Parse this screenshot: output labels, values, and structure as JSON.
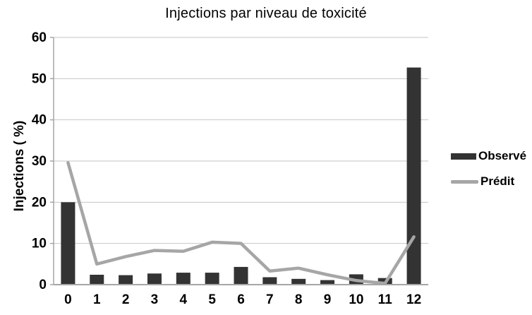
{
  "chart_data": {
    "type": "bar",
    "title": "Injections par niveau de toxicité",
    "xlabel": "",
    "ylabel": "Injections ( %)",
    "categories": [
      "0",
      "1",
      "2",
      "3",
      "4",
      "5",
      "6",
      "7",
      "8",
      "9",
      "10",
      "11",
      "12"
    ],
    "series": [
      {
        "name": "Observé",
        "type": "bar",
        "color": "#333333",
        "values": [
          20,
          2.4,
          2.3,
          2.7,
          2.9,
          2.9,
          4.3,
          1.8,
          1.4,
          1.1,
          2.5,
          1.6,
          52.7
        ]
      },
      {
        "name": "Prédit",
        "type": "line",
        "color": "#a6a6a6",
        "values": [
          29.6,
          5.0,
          6.8,
          8.3,
          8.1,
          10.3,
          10.0,
          3.3,
          4.0,
          2.4,
          1.0,
          0.3,
          11.6
        ]
      }
    ],
    "ylim": [
      0,
      60
    ],
    "yticks": [
      0,
      10,
      20,
      30,
      40,
      50,
      60
    ],
    "grid": true,
    "legend_position": "right",
    "colors": {
      "gridline": "#c6c6c6",
      "axis": "#a6a6a6",
      "text": "#000000",
      "background": "#ffffff"
    }
  }
}
